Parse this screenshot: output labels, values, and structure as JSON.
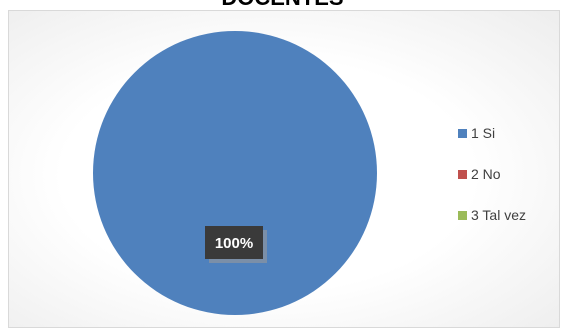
{
  "chart_data": {
    "type": "pie",
    "title": "DOCENTES",
    "categories": [
      "1 Si",
      "2 No",
      "3 Tal vez"
    ],
    "values": [
      100,
      0,
      0
    ],
    "data_labels": [
      "100%"
    ],
    "colors": [
      "#4f81bd",
      "#c0504d",
      "#9bbb59"
    ],
    "legend_position": "right"
  }
}
